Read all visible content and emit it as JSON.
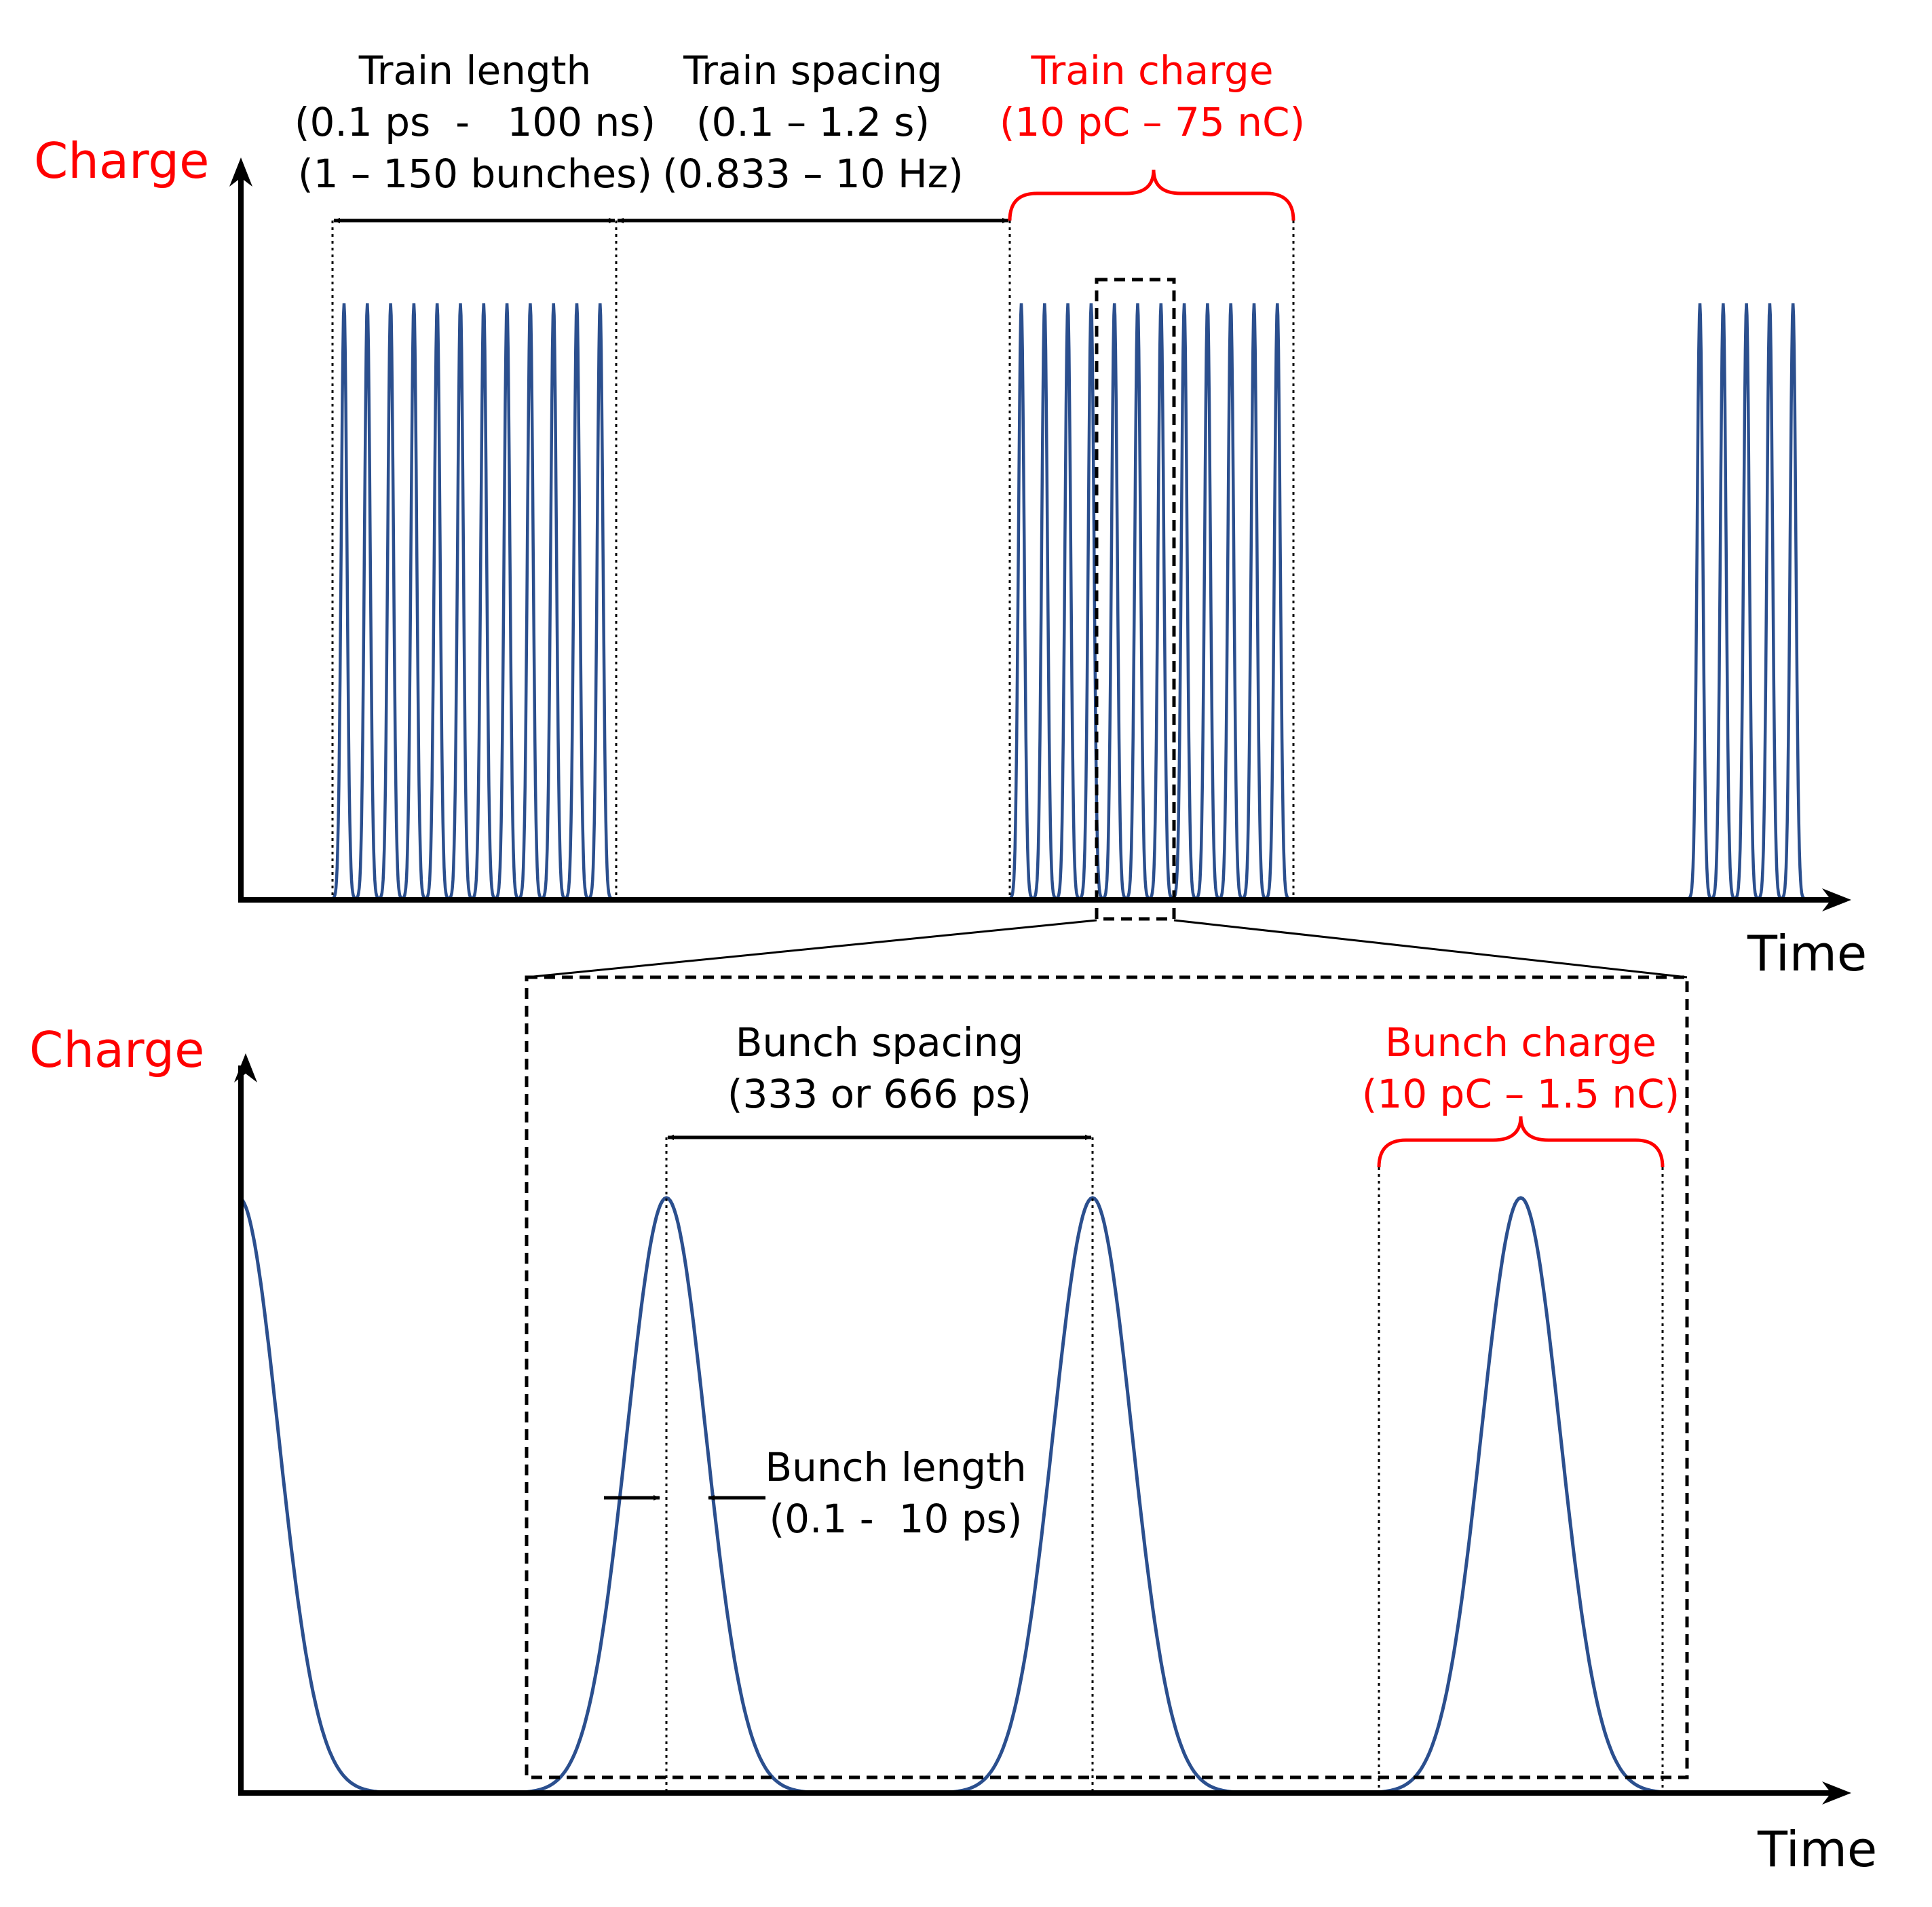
{
  "colors": {
    "signal": "#2b4f8e",
    "accent": "#ff0000",
    "ink": "#000000"
  },
  "top_panel": {
    "y_axis_label": "Charge",
    "x_axis_label": "Time",
    "train_length": {
      "line1": "Train length",
      "line2": "(0.1 ps  -   100 ns)",
      "line3": "(1 – 150 bunches)"
    },
    "train_spacing": {
      "line1": "Train spacing",
      "line2": "(0.1 – 1.2 s)",
      "line3": "(0.833 – 10 Hz)"
    },
    "train_charge": {
      "line1": "Train charge",
      "line2": "(10 pC – 75 nC)"
    },
    "trains": [
      {
        "bunches": 12
      },
      {
        "bunches": 12
      },
      {
        "bunches": 5
      }
    ]
  },
  "bottom_panel": {
    "y_axis_label": "Charge",
    "x_axis_label": "Time",
    "bunch_spacing": {
      "line1": "Bunch spacing",
      "line2": "(333 or 666 ps)"
    },
    "bunch_length": {
      "line1": "Bunch length",
      "line2": "(0.1 -  10 ps)"
    },
    "bunch_charge": {
      "line1": "Bunch charge",
      "line2": "(10 pC – 1.5 nC)"
    },
    "bunches": 4
  }
}
